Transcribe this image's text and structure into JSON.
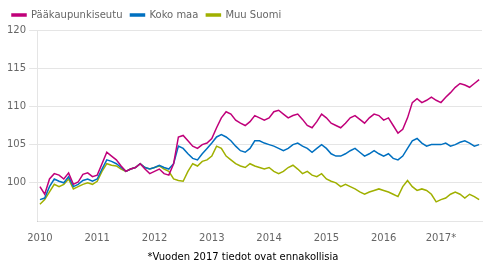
{
  "chart_data": {
    "type": "line",
    "footnote": "*Vuoden 2017 tiedot ovat ennakollisia",
    "x": [
      2010,
      2010.0833,
      2010.1667,
      2010.25,
      2010.3333,
      2010.4167,
      2010.5,
      2010.5833,
      2010.6667,
      2010.75,
      2010.8333,
      2010.9167,
      2011,
      2011.0833,
      2011.1667,
      2011.25,
      2011.3333,
      2011.4167,
      2011.5,
      2011.5833,
      2011.6667,
      2011.75,
      2011.8333,
      2011.9167,
      2012,
      2012.0833,
      2012.1667,
      2012.25,
      2012.3333,
      2012.4167,
      2012.5,
      2012.5833,
      2012.6667,
      2012.75,
      2012.8333,
      2012.9167,
      2013,
      2013.0833,
      2013.1667,
      2013.25,
      2013.3333,
      2013.4167,
      2013.5,
      2013.5833,
      2013.6667,
      2013.75,
      2013.8333,
      2013.9167,
      2014,
      2014.0833,
      2014.1667,
      2014.25,
      2014.3333,
      2014.4167,
      2014.5,
      2014.5833,
      2014.6667,
      2014.75,
      2014.8333,
      2014.9167,
      2015,
      2015.0833,
      2015.1667,
      2015.25,
      2015.3333,
      2015.4167,
      2015.5,
      2015.5833,
      2015.6667,
      2015.75,
      2015.8333,
      2015.9167,
      2016,
      2016.0833,
      2016.1667,
      2016.25,
      2016.3333,
      2016.4167,
      2016.5,
      2016.5833,
      2016.6667,
      2016.75,
      2016.8333,
      2016.9167,
      2017,
      2017.0833,
      2017.1667,
      2017.25,
      2017.3333,
      2017.4167,
      2017.5,
      2017.5833,
      2017.6667
    ],
    "series": [
      {
        "name": "Pääkaupunkiseutu",
        "color": "#c0007a",
        "values": [
          99.5,
          98.5,
          100.5,
          101.2,
          101.0,
          100.5,
          101.3,
          99.8,
          100.1,
          101.1,
          101.3,
          100.8,
          101.0,
          102.5,
          104.0,
          103.5,
          103.0,
          102.2,
          101.5,
          101.8,
          102.0,
          102.5,
          101.8,
          101.2,
          101.5,
          101.8,
          101.2,
          101.0,
          102.5,
          106.0,
          106.2,
          105.5,
          104.8,
          104.5,
          105.0,
          105.2,
          105.8,
          107.2,
          108.5,
          109.3,
          109.0,
          108.2,
          107.8,
          107.5,
          108.0,
          108.8,
          108.5,
          108.2,
          108.5,
          109.3,
          109.5,
          109.0,
          108.5,
          108.8,
          109.0,
          108.3,
          107.5,
          107.2,
          108.0,
          109.0,
          108.5,
          107.8,
          107.5,
          107.2,
          107.8,
          108.5,
          108.8,
          108.3,
          107.8,
          108.5,
          109.0,
          108.8,
          108.2,
          108.5,
          107.5,
          106.5,
          107.0,
          108.5,
          110.5,
          111.0,
          110.5,
          110.8,
          111.2,
          110.8,
          110.5,
          111.2,
          111.8,
          112.5,
          113.0,
          112.8,
          112.5,
          113.0,
          113.5
        ]
      },
      {
        "name": "Koko maa",
        "color": "#0070c0",
        "values": [
          97.8,
          98.0,
          99.5,
          100.5,
          100.2,
          100.0,
          100.8,
          99.5,
          99.8,
          100.3,
          100.5,
          100.2,
          100.5,
          101.8,
          103.0,
          102.8,
          102.5,
          102.0,
          101.5,
          101.8,
          102.0,
          102.5,
          102.0,
          101.8,
          102.0,
          102.3,
          102.0,
          101.8,
          102.5,
          104.8,
          104.5,
          103.8,
          103.2,
          103.0,
          103.8,
          104.5,
          105.2,
          106.0,
          106.3,
          106.0,
          105.5,
          104.8,
          104.2,
          104.0,
          104.5,
          105.5,
          105.5,
          105.2,
          105.0,
          104.8,
          104.5,
          104.2,
          104.5,
          105.0,
          105.2,
          104.8,
          104.5,
          104.0,
          104.5,
          105.0,
          104.5,
          103.8,
          103.5,
          103.5,
          103.8,
          104.2,
          104.5,
          104.0,
          103.5,
          103.8,
          104.2,
          103.8,
          103.5,
          103.8,
          103.2,
          103.0,
          103.5,
          104.5,
          105.5,
          105.8,
          105.2,
          104.8,
          105.0,
          105.0,
          105.0,
          105.2,
          104.8,
          105.0,
          105.3,
          105.5,
          105.2,
          104.8,
          105.0
        ]
      },
      {
        "name": "Muu Suomi",
        "color": "#a0b000",
        "values": [
          97.2,
          97.8,
          98.8,
          99.8,
          99.5,
          99.8,
          100.5,
          99.2,
          99.5,
          99.8,
          100.0,
          99.8,
          100.2,
          101.5,
          102.5,
          102.3,
          102.2,
          101.8,
          101.5,
          101.8,
          102.0,
          102.5,
          102.0,
          101.8,
          102.0,
          102.2,
          101.8,
          101.5,
          100.5,
          100.3,
          100.2,
          101.5,
          102.5,
          102.2,
          102.8,
          103.0,
          103.5,
          104.8,
          104.5,
          103.5,
          103.0,
          102.5,
          102.2,
          102.0,
          102.5,
          102.2,
          102.0,
          101.8,
          102.0,
          101.5,
          101.2,
          101.5,
          102.0,
          102.3,
          101.8,
          101.2,
          101.5,
          101.0,
          100.8,
          101.2,
          100.5,
          100.2,
          100.0,
          99.5,
          99.8,
          99.5,
          99.2,
          98.8,
          98.5,
          98.8,
          99.0,
          99.2,
          99.0,
          98.8,
          98.5,
          98.2,
          99.5,
          100.3,
          99.5,
          99.0,
          99.2,
          99.0,
          98.5,
          97.5,
          97.8,
          98.0,
          98.5,
          98.8,
          98.5,
          98.0,
          98.5,
          98.2,
          97.8
        ]
      }
    ],
    "xlim": [
      2009.95,
      2017.7167
    ],
    "xticks": [
      2010,
      2011,
      2012,
      2013,
      2014,
      2015,
      2016,
      {
        "value": 2017,
        "label": "2017*"
      }
    ],
    "ylim": [
      95,
      120
    ],
    "yticks": [
      100,
      105,
      110,
      115,
      120
    ],
    "grid": "y",
    "legend": "upper left"
  }
}
